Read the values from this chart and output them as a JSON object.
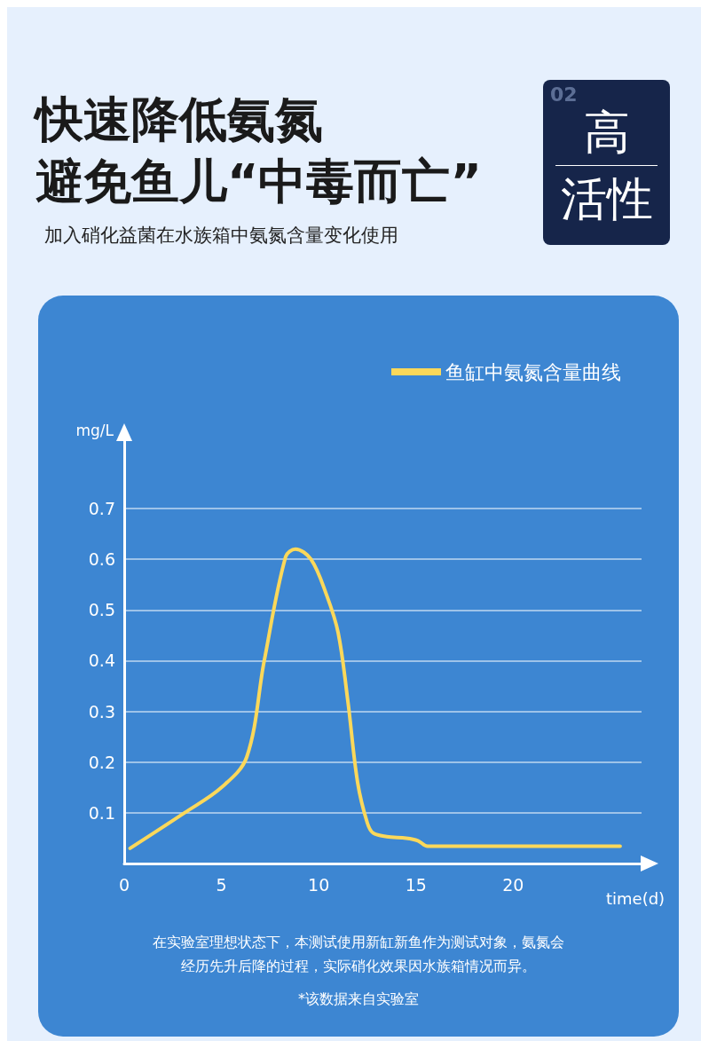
{
  "chart_data": {
    "type": "line",
    "title": "快速降低氨氮避免鱼儿“中毒而亡”",
    "subtitle": "加入硝化益菌在水族箱中氨氮含量变化使用",
    "xlabel": "time(d)",
    "ylabel": "mg/L",
    "annotations": [
      "02",
      "高",
      "活性",
      "在实验室理想状态下，本测试使用新缸新鱼作为测试对象，氨氮会",
      "经历先升后降的过程，实际硝化效果因水族箱情况而异。",
      "*该数据来自实验室"
    ],
    "series": [
      {
        "name": "鱼缸中氨氮含量曲线",
        "color": "#fbd85a",
        "x": [
          0.3,
          3.1,
          5.0,
          6.3,
          7.2,
          8.3,
          8.8,
          9.6,
          10.4,
          11.0,
          11.5,
          12.0,
          12.5,
          12.8,
          13.5,
          14.5,
          15.1,
          15.6,
          25.5
        ],
        "values": [
          0.03,
          0.1,
          0.15,
          0.21,
          0.4,
          0.605,
          0.62,
          0.6,
          0.53,
          0.455,
          0.32,
          0.16,
          0.08,
          0.06,
          0.053,
          0.05,
          0.045,
          0.034,
          0.034
        ]
      }
    ],
    "xlim": [
      0,
      26.6
    ],
    "xticks": [
      0,
      5,
      10,
      15,
      20
    ],
    "ylim": [
      0,
      0.84
    ],
    "yticks": [
      0.1,
      0.2,
      0.3,
      0.4,
      0.5,
      0.6,
      0.7
    ],
    "grid": "y",
    "legend": "top right",
    "marker": "none",
    "line_style": "solid"
  }
}
